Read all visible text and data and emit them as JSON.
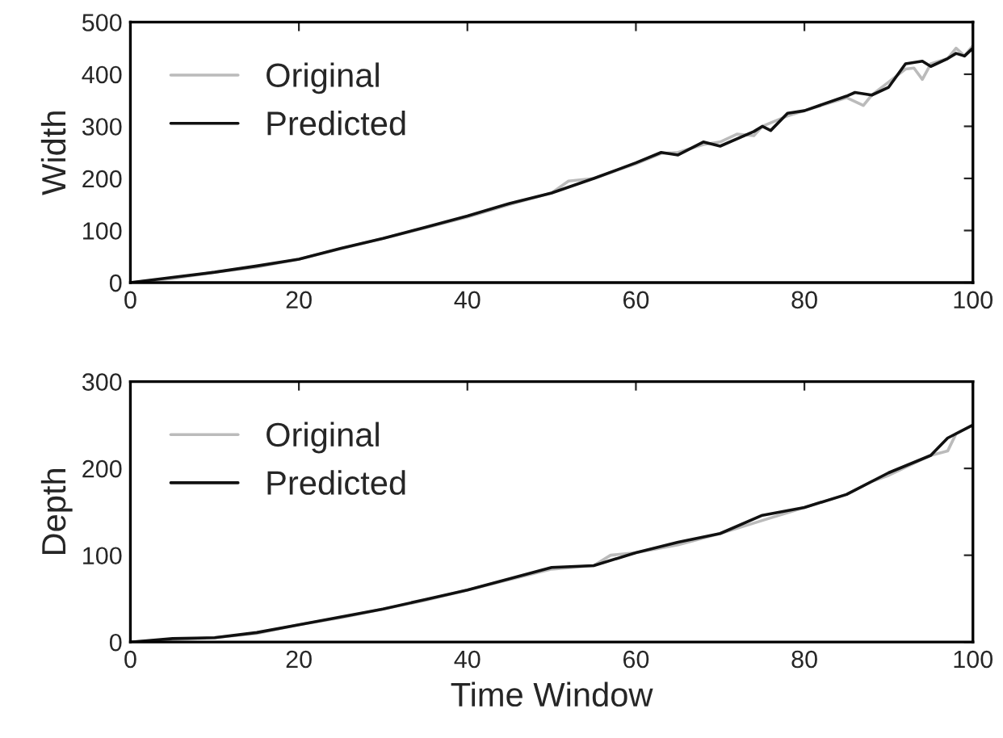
{
  "chart_data": [
    {
      "type": "line",
      "ylabel": "Width",
      "xlim": [
        0,
        100
      ],
      "ylim": [
        0,
        500
      ],
      "xticks": [
        0,
        20,
        40,
        60,
        80,
        100
      ],
      "yticks": [
        0,
        100,
        200,
        300,
        400,
        500
      ],
      "grid": false,
      "legend": "top left",
      "line_style": "solid",
      "series": [
        {
          "name": "Original",
          "color": "#bbbbbb",
          "x": [
            0,
            5,
            10,
            15,
            20,
            25,
            30,
            35,
            40,
            45,
            50,
            52,
            55,
            60,
            63,
            65,
            68,
            70,
            72,
            74,
            75,
            78,
            80,
            85,
            87,
            88,
            90,
            92,
            93,
            94,
            95,
            97,
            98,
            99,
            100
          ],
          "values": [
            0,
            8,
            20,
            30,
            45,
            65,
            85,
            105,
            126,
            150,
            172,
            195,
            200,
            228,
            248,
            250,
            265,
            270,
            285,
            282,
            300,
            320,
            330,
            355,
            340,
            360,
            385,
            410,
            412,
            390,
            420,
            430,
            450,
            435,
            455
          ]
        },
        {
          "name": "Predicted",
          "color": "#111111",
          "x": [
            0,
            5,
            10,
            15,
            20,
            25,
            30,
            35,
            40,
            45,
            50,
            55,
            60,
            63,
            65,
            68,
            70,
            74,
            75,
            76,
            78,
            80,
            85,
            86,
            88,
            90,
            92,
            94,
            95,
            97,
            98,
            99,
            100
          ],
          "values": [
            0,
            10,
            20,
            32,
            45,
            66,
            85,
            106,
            128,
            152,
            172,
            200,
            230,
            250,
            245,
            270,
            262,
            290,
            300,
            292,
            325,
            330,
            358,
            365,
            360,
            375,
            420,
            425,
            415,
            430,
            440,
            435,
            450
          ]
        }
      ]
    },
    {
      "type": "line",
      "xlabel": "Time Window",
      "ylabel": "Depth",
      "xlim": [
        0,
        100
      ],
      "ylim": [
        0,
        300
      ],
      "xticks": [
        0,
        20,
        40,
        60,
        80,
        100
      ],
      "yticks": [
        0,
        100,
        200,
        300
      ],
      "grid": false,
      "legend": "top left",
      "line_style": "solid",
      "series": [
        {
          "name": "Original",
          "color": "#bbbbbb",
          "x": [
            0,
            5,
            10,
            15,
            20,
            25,
            30,
            35,
            40,
            45,
            50,
            55,
            57,
            60,
            65,
            70,
            75,
            80,
            85,
            88,
            90,
            95,
            97,
            98,
            100
          ],
          "values": [
            0,
            3,
            5,
            10,
            20,
            28,
            38,
            48,
            60,
            72,
            84,
            88,
            100,
            103,
            112,
            125,
            140,
            155,
            170,
            185,
            192,
            215,
            220,
            240,
            250
          ]
        },
        {
          "name": "Predicted",
          "color": "#111111",
          "x": [
            0,
            5,
            10,
            15,
            20,
            25,
            30,
            35,
            40,
            45,
            50,
            55,
            60,
            65,
            70,
            75,
            80,
            85,
            90,
            95,
            97,
            100
          ],
          "values": [
            0,
            4,
            5,
            11,
            20,
            29,
            38,
            49,
            60,
            73,
            86,
            88,
            103,
            115,
            125,
            146,
            155,
            170,
            195,
            215,
            235,
            250
          ]
        }
      ]
    }
  ]
}
